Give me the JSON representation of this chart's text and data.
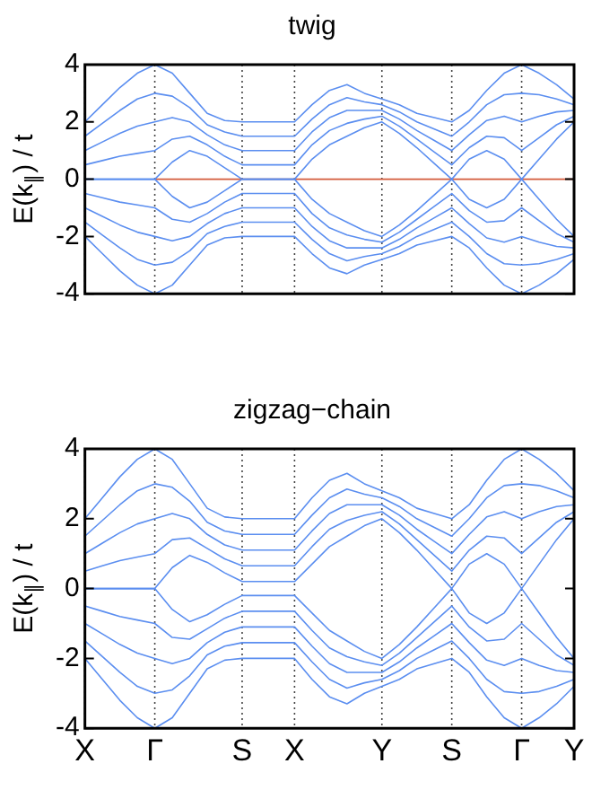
{
  "chart_data": [
    {
      "type": "line",
      "title": "twig",
      "ylabel": "E(k$_{∥}$) / t",
      "legend": false,
      "marker": "none",
      "grid": "x",
      "categories": [
        null,
        null,
        null,
        null,
        null,
        null,
        null,
        null,
        null,
        null,
        null,
        null,
        null,
        null,
        null,
        null,
        null,
        null,
        null,
        null,
        null,
        null,
        null,
        null,
        null,
        null,
        null,
        null,
        null
      ],
      "ylim": [
        -4,
        4
      ],
      "yticks": [
        -4,
        -2,
        0,
        2,
        4
      ],
      "series": [
        {
          "color": "#5b8ef0",
          "values": [
            0,
            0,
            0,
            0,
            0,
            0.6,
            1.0,
            0.8,
            0.4,
            0,
            0,
            0,
            0,
            0.7,
            1.2,
            1.5,
            1.8,
            2.0,
            1.6,
            1.1,
            0.55,
            0,
            0.7,
            1.0,
            0.7,
            0,
            0.7,
            1.4,
            2.0
          ]
        },
        {
          "color": "#5b8ef0",
          "values": [
            0.5,
            0.65,
            0.8,
            0.9,
            1,
            1.4,
            1.5,
            1.2,
            0.8,
            0.5,
            0.5,
            0.5,
            0.5,
            1.2,
            1.7,
            1.95,
            2.1,
            2.2,
            1.85,
            1.4,
            0.95,
            0.5,
            1.1,
            1.5,
            1.45,
            1,
            1.45,
            1.9,
            2.2
          ]
        },
        {
          "color": "#5b8ef0",
          "values": [
            1,
            1.3,
            1.6,
            1.85,
            2,
            2.15,
            2.0,
            1.55,
            1.2,
            1,
            1,
            1,
            1,
            1.65,
            2.15,
            2.4,
            2.4,
            2.4,
            2.1,
            1.7,
            1.35,
            1,
            1.55,
            2.05,
            2.2,
            2,
            2.2,
            2.35,
            2.4
          ]
        },
        {
          "color": "#5b8ef0",
          "values": [
            1.5,
            1.95,
            2.4,
            2.8,
            3,
            2.9,
            2.5,
            1.9,
            1.65,
            1.5,
            1.5,
            1.5,
            1.5,
            2.1,
            2.6,
            2.85,
            2.7,
            2.6,
            2.35,
            2.0,
            1.75,
            1.5,
            2.0,
            2.6,
            2.95,
            3,
            2.95,
            2.8,
            2.6
          ]
        },
        {
          "color": "#5b8ef0",
          "values": [
            2.0,
            2.6,
            3.2,
            3.7,
            4.0,
            3.7,
            3.0,
            2.3,
            2.05,
            2.0,
            2.0,
            2.0,
            2.0,
            2.6,
            3.1,
            3.3,
            3.0,
            2.8,
            2.6,
            2.3,
            2.15,
            2.0,
            2.4,
            3.1,
            3.7,
            4.0,
            3.7,
            3.3,
            2.8
          ]
        },
        {
          "color": "#5b8ef0",
          "values": [
            0,
            0,
            0,
            0,
            0,
            -0.6,
            -1.0,
            -0.8,
            -0.4,
            0,
            0,
            0,
            0,
            -0.7,
            -1.2,
            -1.5,
            -1.8,
            -2.0,
            -1.6,
            -1.1,
            -0.55,
            0,
            -0.7,
            -1.0,
            -0.7,
            0,
            -0.7,
            -1.4,
            -2.0
          ]
        },
        {
          "color": "#5b8ef0",
          "values": [
            -0.5,
            -0.65,
            -0.8,
            -0.9,
            -1,
            -1.4,
            -1.5,
            -1.2,
            -0.8,
            -0.5,
            -0.5,
            -0.5,
            -0.5,
            -1.2,
            -1.7,
            -1.95,
            -2.1,
            -2.2,
            -1.85,
            -1.4,
            -0.95,
            -0.5,
            -1.1,
            -1.5,
            -1.45,
            -1,
            -1.45,
            -1.9,
            -2.2
          ]
        },
        {
          "color": "#5b8ef0",
          "values": [
            -1,
            -1.3,
            -1.6,
            -1.85,
            -2,
            -2.15,
            -2.0,
            -1.55,
            -1.2,
            -1,
            -1,
            -1,
            -1,
            -1.65,
            -2.15,
            -2.4,
            -2.4,
            -2.4,
            -2.1,
            -1.7,
            -1.35,
            -1,
            -1.55,
            -2.05,
            -2.2,
            -2,
            -2.2,
            -2.35,
            -2.4
          ]
        },
        {
          "color": "#5b8ef0",
          "values": [
            -1.5,
            -1.95,
            -2.4,
            -2.8,
            -3,
            -2.9,
            -2.5,
            -1.9,
            -1.65,
            -1.5,
            -1.5,
            -1.5,
            -1.5,
            -2.1,
            -2.6,
            -2.85,
            -2.7,
            -2.6,
            -2.35,
            -2.0,
            -1.75,
            -1.5,
            -2.0,
            -2.6,
            -2.95,
            -3,
            -2.95,
            -2.8,
            -2.6
          ]
        },
        {
          "color": "#5b8ef0",
          "values": [
            -2.0,
            -2.6,
            -3.2,
            -3.7,
            -4.0,
            -3.7,
            -3.0,
            -2.3,
            -2.05,
            -2.0,
            -2.0,
            -2.0,
            -2.0,
            -2.6,
            -3.1,
            -3.3,
            -3.0,
            -2.8,
            -2.6,
            -2.3,
            -2.15,
            -2.0,
            -2.4,
            -3.1,
            -3.7,
            -4.0,
            -3.7,
            -3.3,
            -2.8
          ]
        },
        {
          "color": "#d45a3a",
          "values": [
            null,
            null,
            null,
            null,
            0,
            0,
            0,
            0,
            0,
            0,
            0,
            0,
            0,
            0,
            0,
            0,
            0,
            0,
            0,
            0,
            0,
            0,
            0,
            0,
            0,
            0,
            0,
            0,
            0
          ]
        }
      ]
    },
    {
      "type": "line",
      "title": "zigzag−chain",
      "ylabel": "E(k$_{∥}$) / t",
      "legend": false,
      "marker": "none",
      "grid": "x",
      "categories": [
        "X",
        null,
        null,
        null,
        "Γ",
        null,
        null,
        null,
        null,
        "S",
        null,
        null,
        "X",
        null,
        null,
        null,
        null,
        "Y",
        null,
        null,
        null,
        "S",
        null,
        null,
        null,
        "Γ",
        null,
        null,
        "Y"
      ],
      "ylim": [
        -4,
        4
      ],
      "yticks": [
        -4,
        -2,
        0,
        2,
        4
      ],
      "series": [
        {
          "color": "#5b8ef0",
          "values": [
            0,
            0,
            0,
            0,
            0,
            0.6,
            0.95,
            0.75,
            0.45,
            0.2,
            0.2,
            0.2,
            0.2,
            0.7,
            1.2,
            1.5,
            1.8,
            2.0,
            1.6,
            1.1,
            0.55,
            0,
            0.7,
            1.0,
            0.7,
            0,
            0.7,
            1.4,
            2.0
          ]
        },
        {
          "color": "#5b8ef0",
          "values": [
            0.5,
            0.65,
            0.8,
            0.9,
            1,
            1.4,
            1.45,
            1.15,
            0.85,
            0.65,
            0.65,
            0.65,
            0.65,
            1.2,
            1.7,
            1.95,
            2.1,
            2.2,
            1.85,
            1.4,
            0.95,
            0.5,
            1.1,
            1.5,
            1.45,
            1,
            1.45,
            1.9,
            2.2
          ]
        },
        {
          "color": "#5b8ef0",
          "values": [
            1,
            1.3,
            1.6,
            1.85,
            2,
            2.15,
            2.0,
            1.55,
            1.25,
            1.1,
            1.1,
            1.1,
            1.1,
            1.65,
            2.15,
            2.4,
            2.4,
            2.4,
            2.1,
            1.7,
            1.35,
            1,
            1.55,
            2.05,
            2.2,
            2,
            2.2,
            2.35,
            2.4
          ]
        },
        {
          "color": "#5b8ef0",
          "values": [
            1.5,
            1.95,
            2.4,
            2.8,
            3,
            2.9,
            2.5,
            1.9,
            1.65,
            1.55,
            1.55,
            1.55,
            1.55,
            2.1,
            2.6,
            2.85,
            2.7,
            2.6,
            2.35,
            2.0,
            1.75,
            1.5,
            2.0,
            2.6,
            2.95,
            3,
            2.95,
            2.8,
            2.6
          ]
        },
        {
          "color": "#5b8ef0",
          "values": [
            2.0,
            2.6,
            3.2,
            3.7,
            4.0,
            3.7,
            3.0,
            2.3,
            2.05,
            2.0,
            2.0,
            2.0,
            2.0,
            2.6,
            3.1,
            3.3,
            3.0,
            2.8,
            2.6,
            2.3,
            2.15,
            2.0,
            2.4,
            3.1,
            3.7,
            4.0,
            3.7,
            3.3,
            2.8
          ]
        },
        {
          "color": "#5b8ef0",
          "values": [
            0,
            0,
            0,
            0,
            0,
            -0.6,
            -0.95,
            -0.75,
            -0.45,
            -0.2,
            -0.2,
            -0.2,
            -0.2,
            -0.7,
            -1.2,
            -1.5,
            -1.8,
            -2.0,
            -1.6,
            -1.1,
            -0.55,
            0,
            -0.7,
            -1.0,
            -0.7,
            0,
            -0.7,
            -1.4,
            -2.0
          ]
        },
        {
          "color": "#5b8ef0",
          "values": [
            -0.5,
            -0.65,
            -0.8,
            -0.9,
            -1,
            -1.4,
            -1.45,
            -1.15,
            -0.85,
            -0.65,
            -0.65,
            -0.65,
            -0.65,
            -1.2,
            -1.7,
            -1.95,
            -2.1,
            -2.2,
            -1.85,
            -1.4,
            -0.95,
            -0.5,
            -1.1,
            -1.5,
            -1.45,
            -1,
            -1.45,
            -1.9,
            -2.2
          ]
        },
        {
          "color": "#5b8ef0",
          "values": [
            -1,
            -1.3,
            -1.6,
            -1.85,
            -2,
            -2.15,
            -2.0,
            -1.55,
            -1.25,
            -1.1,
            -1.1,
            -1.1,
            -1.1,
            -1.65,
            -2.15,
            -2.4,
            -2.4,
            -2.4,
            -2.1,
            -1.7,
            -1.35,
            -1,
            -1.55,
            -2.05,
            -2.2,
            -2,
            -2.2,
            -2.35,
            -2.4
          ]
        },
        {
          "color": "#5b8ef0",
          "values": [
            -1.5,
            -1.95,
            -2.4,
            -2.8,
            -3,
            -2.9,
            -2.5,
            -1.9,
            -1.65,
            -1.55,
            -1.55,
            -1.55,
            -1.55,
            -2.1,
            -2.6,
            -2.85,
            -2.7,
            -2.6,
            -2.35,
            -2.0,
            -1.75,
            -1.5,
            -2.0,
            -2.6,
            -2.95,
            -3,
            -2.95,
            -2.8,
            -2.6
          ]
        },
        {
          "color": "#5b8ef0",
          "values": [
            -2.0,
            -2.6,
            -3.2,
            -3.7,
            -4.0,
            -3.7,
            -3.0,
            -2.3,
            -2.05,
            -2.0,
            -2.0,
            -2.0,
            -2.0,
            -2.6,
            -3.1,
            -3.3,
            -3.0,
            -2.8,
            -2.6,
            -2.3,
            -2.15,
            -2.0,
            -2.4,
            -3.1,
            -3.7,
            -4.0,
            -3.7,
            -3.3,
            -2.8
          ]
        }
      ]
    }
  ]
}
